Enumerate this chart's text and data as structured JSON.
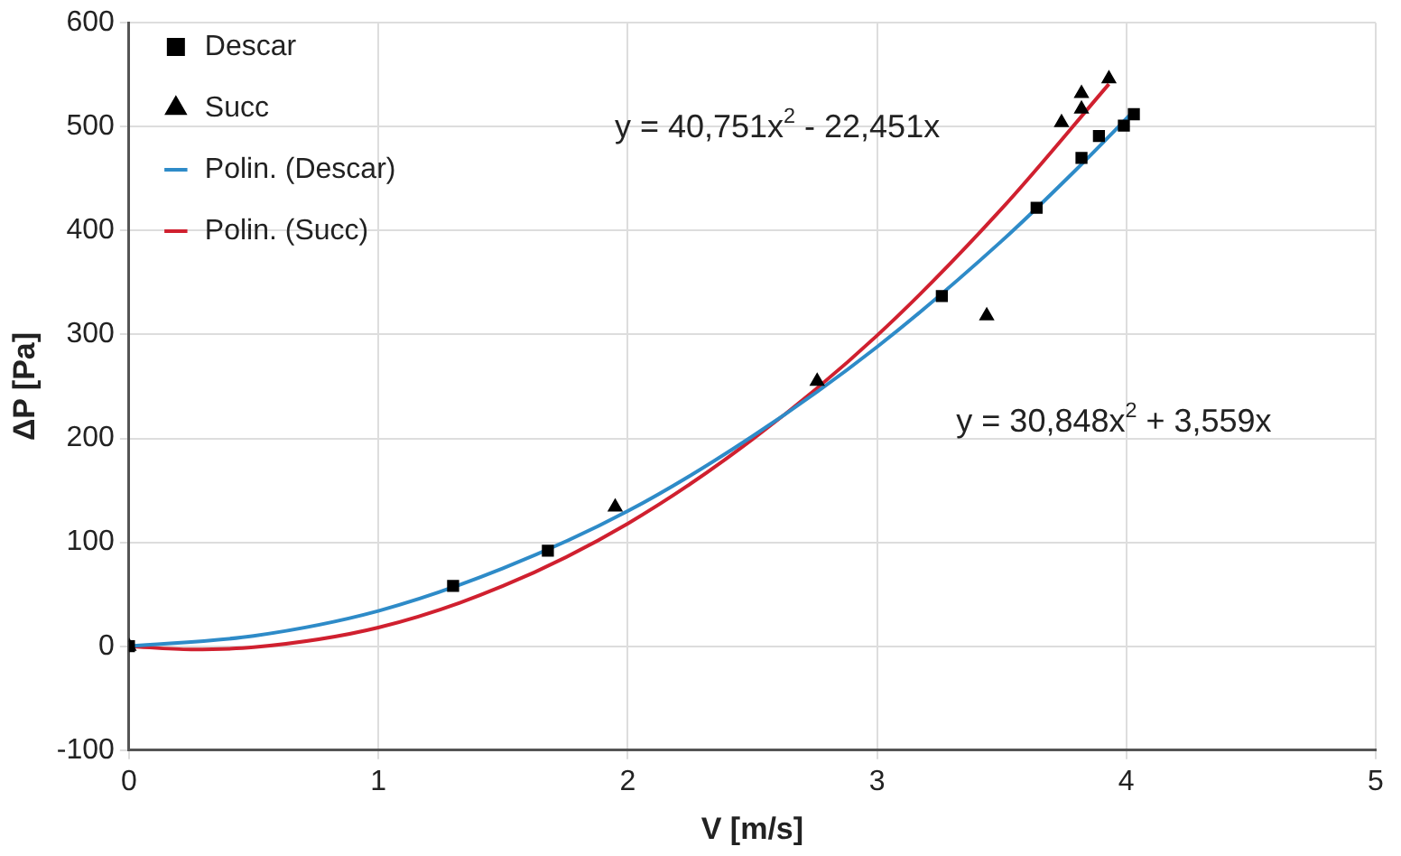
{
  "chart_data": {
    "type": "scatter",
    "xlabel": "V [m/s]",
    "ylabel": "ΔP [Pa]",
    "xlim": [
      0,
      5
    ],
    "xticks": [
      0,
      1,
      2,
      3,
      4,
      5
    ],
    "ylim": [
      -100,
      600
    ],
    "yticks": [
      -100,
      0,
      100,
      200,
      300,
      400,
      500,
      600
    ],
    "grid": true,
    "legend": "top left",
    "series": [
      {
        "name": "Descar",
        "type": "scatter",
        "marker": "square",
        "color": "#000000",
        "x": [
          0,
          1.3,
          1.68,
          3.26,
          3.64,
          3.82,
          3.89,
          3.99,
          4.03
        ],
        "values": [
          0,
          58,
          92,
          337,
          422,
          470,
          491,
          501,
          512
        ]
      },
      {
        "name": "Succ",
        "type": "scatter",
        "marker": "triangle",
        "color": "#000000",
        "x": [
          0,
          1.95,
          2.76,
          3.44,
          3.74,
          3.82,
          3.82,
          3.93
        ],
        "values": [
          0,
          134,
          255,
          318,
          504,
          532,
          517,
          546
        ]
      },
      {
        "name": "Polin. (Descar)",
        "type": "line",
        "marker": "none",
        "color": "#2e8bc8",
        "x": [
          0,
          0.5,
          1,
          1.5,
          2,
          2.5,
          3,
          3.5,
          3.8,
          4.03
        ],
        "values": [
          0,
          10,
          34,
          75,
          130,
          202,
          288,
          390,
          459,
          515
        ]
      },
      {
        "name": "Polin. (Succ)",
        "type": "line",
        "marker": "none",
        "color": "#d0202f",
        "x": [
          0,
          0.25,
          0.5,
          1,
          1.5,
          2,
          2.5,
          3,
          3.5,
          3.93
        ],
        "values": [
          0,
          -3,
          -1,
          18,
          58,
          118,
          199,
          299,
          421,
          541
        ]
      }
    ],
    "annotations": [
      "y = 40,751x$^{2}$ - 22,451x",
      "y = 30,848x$^{2}$ + 3,559x"
    ]
  }
}
